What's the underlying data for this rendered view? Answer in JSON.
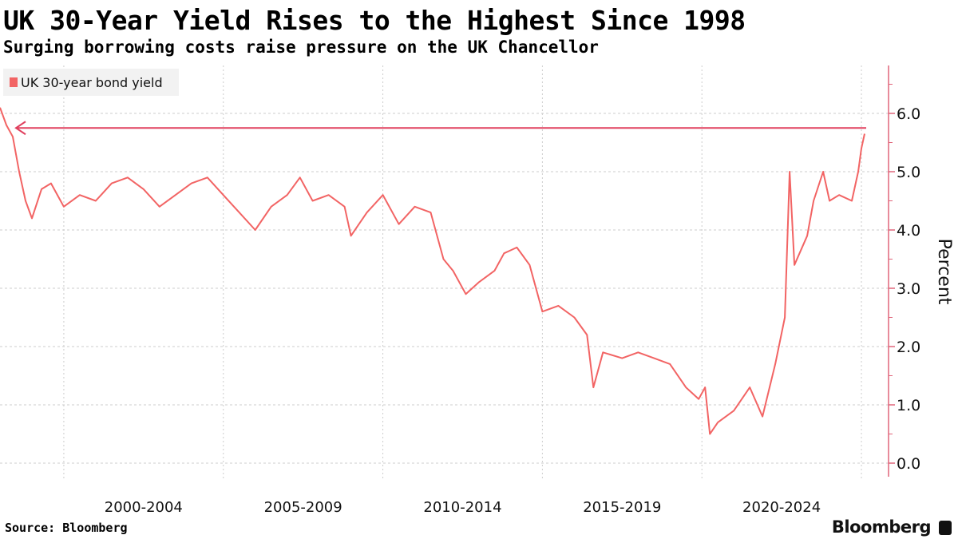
{
  "title": "UK 30-Year Yield Rises to the Highest Since 1998",
  "subtitle": "Surging borrowing costs raise pressure on the UK Chancellor",
  "source": "Source: Bloomberg",
  "brand": "Bloomberg",
  "colors": {
    "series": "#f26464",
    "axis": "#e0657a",
    "reference_line": "#e0405e"
  },
  "chart_data": {
    "type": "line",
    "title": "UK 30-Year Yield Rises to the Highest Since 1998",
    "ylabel": "Percent",
    "xlabel": "",
    "ylim": [
      0,
      6.5
    ],
    "xlim": [
      1998.0,
      2025.85
    ],
    "y_axis_position": "right",
    "yticks": [
      "0.0",
      "1.0",
      "2.0",
      "3.0",
      "4.0",
      "5.0",
      "6.0"
    ],
    "xtick_labels": [
      {
        "label": "2000-2004",
        "center": 2002.5
      },
      {
        "label": "2005-2009",
        "center": 2007.5
      },
      {
        "label": "2010-2014",
        "center": 2012.5
      },
      {
        "label": "2015-2019",
        "center": 2017.5
      },
      {
        "label": "2020-2024",
        "center": 2022.5
      }
    ],
    "x_gridlines": [
      2000,
      2005,
      2010,
      2015,
      2020,
      2025
    ],
    "grid": true,
    "legend": "top-left",
    "reference_line": {
      "y": 5.75,
      "from": 1998.5,
      "to": 2025.15,
      "arrow": "left"
    },
    "series": [
      {
        "name": "UK 30-year bond yield",
        "x": [
          1998.0,
          1998.2,
          1998.4,
          1998.6,
          1998.8,
          1999.0,
          1999.3,
          1999.6,
          1999.9,
          2000.0,
          2000.5,
          2001.0,
          2001.5,
          2002.0,
          2002.5,
          2003.0,
          2003.5,
          2004.0,
          2004.5,
          2005.0,
          2005.5,
          2006.0,
          2006.5,
          2007.0,
          2007.4,
          2007.8,
          2008.3,
          2008.8,
          2009.0,
          2009.5,
          2010.0,
          2010.5,
          2011.0,
          2011.5,
          2011.9,
          2012.2,
          2012.6,
          2013.0,
          2013.5,
          2013.8,
          2014.2,
          2014.6,
          2015.0,
          2015.5,
          2016.0,
          2016.4,
          2016.6,
          2016.9,
          2017.5,
          2018.0,
          2018.5,
          2019.0,
          2019.5,
          2019.9,
          2020.1,
          2020.25,
          2020.5,
          2021.0,
          2021.5,
          2021.9,
          2022.3,
          2022.6,
          2022.75,
          2022.9,
          2023.3,
          2023.5,
          2023.8,
          2024.0,
          2024.3,
          2024.7,
          2024.9,
          2025.0,
          2025.1
        ],
        "values": [
          6.1,
          5.8,
          5.6,
          5.0,
          4.5,
          4.2,
          4.7,
          4.8,
          4.5,
          4.4,
          4.6,
          4.5,
          4.8,
          4.9,
          4.7,
          4.4,
          4.6,
          4.8,
          4.9,
          4.6,
          4.3,
          4.0,
          4.4,
          4.6,
          4.9,
          4.5,
          4.6,
          4.4,
          3.9,
          4.3,
          4.6,
          4.1,
          4.4,
          4.3,
          3.5,
          3.3,
          2.9,
          3.1,
          3.3,
          3.6,
          3.7,
          3.4,
          2.6,
          2.7,
          2.5,
          2.2,
          1.3,
          1.9,
          1.8,
          1.9,
          1.8,
          1.7,
          1.3,
          1.1,
          1.3,
          0.5,
          0.7,
          0.9,
          1.3,
          0.8,
          1.7,
          2.5,
          5.0,
          3.4,
          3.9,
          4.5,
          5.0,
          4.5,
          4.6,
          4.5,
          5.0,
          5.4,
          5.65
        ]
      }
    ]
  }
}
